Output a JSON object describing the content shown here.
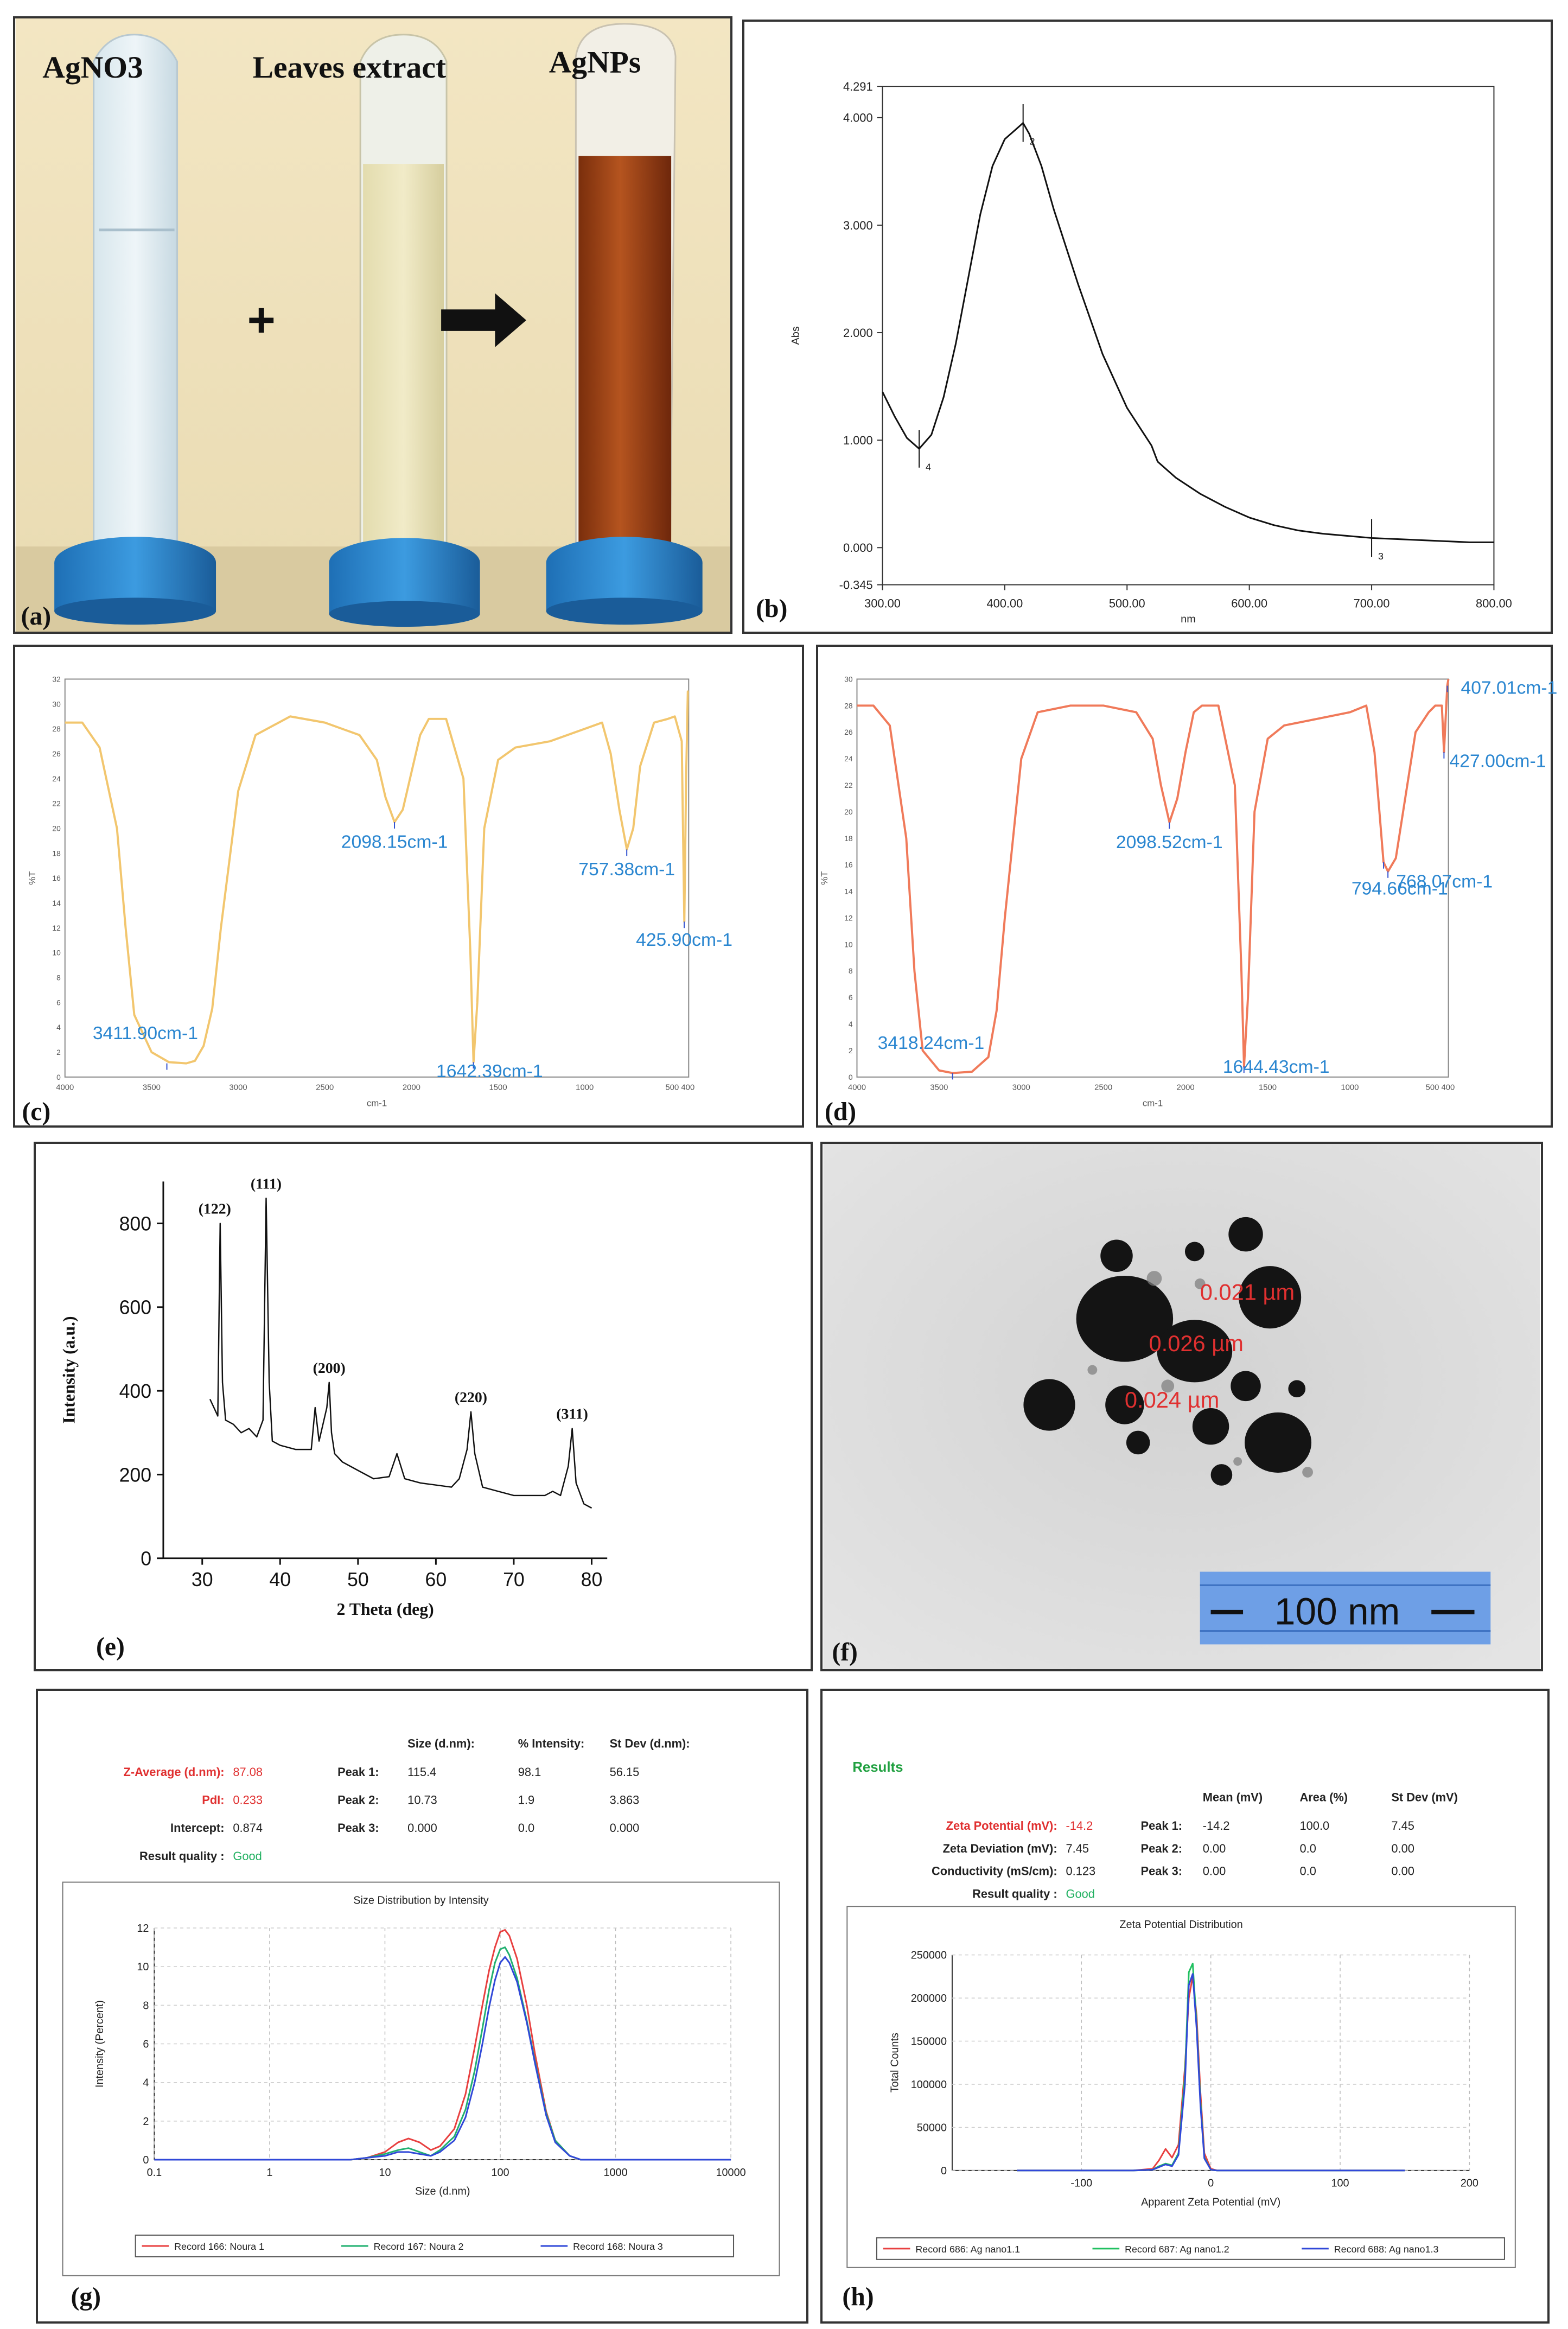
{
  "panels": [
    {
      "id": "a",
      "label": "(a)",
      "titles": {
        "left": "AgNO3",
        "middle": "Leaves extract",
        "right": "AgNPs"
      },
      "symbols": {
        "plus": "+",
        "arrow": "arrow-right"
      }
    },
    {
      "id": "b",
      "label": "(b)"
    },
    {
      "id": "c",
      "label": "(c)"
    },
    {
      "id": "d",
      "label": "(d)"
    },
    {
      "id": "e",
      "label": "(e)"
    },
    {
      "id": "f",
      "label": "(f)",
      "tem": {
        "measurements": [
          "0.021 µm",
          "0.026 µm",
          "0.024 µm"
        ],
        "scale_bar": "100 nm",
        "bar_color": "#6e9fe6",
        "text_color": "#e03030"
      }
    },
    {
      "id": "g",
      "label": "(g)"
    },
    {
      "id": "h",
      "label": "(h)"
    }
  ],
  "chart_data": [
    {
      "panel": "b",
      "type": "line",
      "title": "",
      "xlabel": "nm",
      "ylabel": "Abs",
      "xlim": [
        300,
        800
      ],
      "ylim": [
        -0.345,
        4.291
      ],
      "xticks": [
        "300.00",
        "400.00",
        "500.00",
        "600.00",
        "700.00",
        "800.00"
      ],
      "yticks": [
        {
          "v": -0.345,
          "t": "-0.345"
        },
        {
          "v": 0,
          "t": "0.000"
        },
        {
          "v": 1,
          "t": "1.000"
        },
        {
          "v": 2,
          "t": "2.000"
        },
        {
          "v": 3,
          "t": "3.000"
        },
        {
          "v": 4,
          "t": "4.000"
        },
        {
          "v": 4.291,
          "t": "4.291"
        }
      ],
      "x": [
        300,
        310,
        320,
        330,
        340,
        350,
        360,
        370,
        380,
        390,
        400,
        410,
        415,
        420,
        430,
        440,
        460,
        480,
        500,
        520,
        525,
        540,
        560,
        580,
        600,
        620,
        640,
        660,
        680,
        700,
        720,
        740,
        760,
        780,
        800
      ],
      "values": [
        1.45,
        1.22,
        1.02,
        0.92,
        1.05,
        1.4,
        1.9,
        2.5,
        3.1,
        3.55,
        3.8,
        3.9,
        3.95,
        3.85,
        3.55,
        3.15,
        2.45,
        1.8,
        1.3,
        0.95,
        0.8,
        0.65,
        0.5,
        0.38,
        0.28,
        0.21,
        0.16,
        0.13,
        0.11,
        0.09,
        0.08,
        0.07,
        0.06,
        0.05,
        0.05
      ],
      "markers": [
        {
          "x": 330,
          "text": "4"
        },
        {
          "x": 415,
          "text": "2"
        },
        {
          "x": 700,
          "text": "3"
        }
      ],
      "color": "#111111"
    },
    {
      "panel": "c",
      "type": "line",
      "title": "",
      "xlabel": "cm-1",
      "ylabel": "%T",
      "xlim": [
        4000,
        400
      ],
      "ylim": [
        0,
        32
      ],
      "xticks": [
        "4000",
        "3500",
        "3000",
        "2500",
        "2000",
        "1500",
        "1000",
        "500 400"
      ],
      "yticks": [
        "0",
        "2",
        "4",
        "6",
        "8",
        "10",
        "12",
        "14",
        "16",
        "18",
        "20",
        "22",
        "24",
        "26",
        "28",
        "30",
        "32"
      ],
      "x": [
        4000,
        3900,
        3800,
        3700,
        3650,
        3600,
        3500,
        3400,
        3300,
        3250,
        3200,
        3150,
        3100,
        3000,
        2900,
        2700,
        2500,
        2300,
        2200,
        2150,
        2098,
        2050,
        2000,
        1950,
        1900,
        1800,
        1700,
        1660,
        1642,
        1620,
        1580,
        1500,
        1400,
        1200,
        1000,
        900,
        850,
        800,
        757,
        720,
        680,
        600,
        520,
        480,
        440,
        425,
        415,
        405,
        400
      ],
      "values": [
        28.5,
        28.5,
        26.5,
        20,
        12,
        5,
        2,
        1.2,
        1.1,
        1.3,
        2.5,
        5.5,
        12,
        23,
        27.5,
        29,
        28.5,
        27.5,
        25.5,
        22.5,
        20.5,
        21.5,
        24.5,
        27.5,
        28.8,
        28.8,
        24,
        10,
        1.2,
        6,
        20,
        25.5,
        26.5,
        27,
        28,
        28.5,
        26,
        21.5,
        18.3,
        20,
        25,
        28.5,
        28.8,
        29,
        27,
        12.5,
        24,
        31,
        31
      ],
      "annotations": [
        {
          "x": 3411.9,
          "y": 1.1,
          "text": "3411.90cm-1"
        },
        {
          "x": 2098.15,
          "y": 20.5,
          "text": "2098.15cm-1"
        },
        {
          "x": 1642.39,
          "y": 1.2,
          "text": "1642.39cm-1"
        },
        {
          "x": 757.38,
          "y": 18.3,
          "text": "757.38cm-1"
        },
        {
          "x": 425.9,
          "y": 12.5,
          "text": "425.90cm-1"
        }
      ],
      "color": "#f2c66e"
    },
    {
      "panel": "d",
      "type": "line",
      "title": "",
      "xlabel": "cm-1",
      "ylabel": "%T",
      "xlim": [
        4000,
        400
      ],
      "ylim": [
        0,
        30
      ],
      "xticks": [
        "4000",
        "3500",
        "3000",
        "2500",
        "2000",
        "1500",
        "1000",
        "500 400"
      ],
      "yticks": [
        "0",
        "2",
        "4",
        "6",
        "8",
        "10",
        "12",
        "14",
        "16",
        "18",
        "20",
        "22",
        "24",
        "26",
        "28",
        "30"
      ],
      "x": [
        4000,
        3900,
        3800,
        3700,
        3650,
        3600,
        3500,
        3418,
        3300,
        3200,
        3150,
        3100,
        3000,
        2900,
        2700,
        2500,
        2300,
        2200,
        2150,
        2098,
        2050,
        2000,
        1950,
        1900,
        1800,
        1700,
        1660,
        1644,
        1620,
        1580,
        1500,
        1400,
        1200,
        1000,
        900,
        850,
        820,
        795,
        768,
        720,
        600,
        520,
        480,
        440,
        427,
        415,
        407,
        400
      ],
      "values": [
        28,
        28,
        26.5,
        18,
        8,
        2,
        0.5,
        0.3,
        0.4,
        1.5,
        5,
        12,
        24,
        27.5,
        28,
        28,
        27.5,
        25.5,
        22,
        19.2,
        21,
        24.5,
        27.5,
        28,
        28,
        22,
        8,
        0.8,
        6,
        20,
        25.5,
        26.5,
        27,
        27.5,
        28,
        24.5,
        20,
        16.2,
        15.5,
        16.5,
        26,
        27.5,
        28,
        28,
        24.5,
        27.5,
        29.5,
        30
      ],
      "annotations": [
        {
          "x": 3418.24,
          "y": 0.3,
          "text": "3418.24cm-1"
        },
        {
          "x": 2098.52,
          "y": 19.2,
          "text": "2098.52cm-1"
        },
        {
          "x": 1644.43,
          "y": 0.8,
          "text": "1644.43cm-1"
        },
        {
          "x": 794.66,
          "y": 16.2,
          "text": "794.66cm-1"
        },
        {
          "x": 768.07,
          "y": 15.5,
          "text": "768.07cm-1"
        },
        {
          "x": 427.0,
          "y": 24.5,
          "text": "427.00cm-1"
        },
        {
          "x": 407.01,
          "y": 29.5,
          "text": "407.01cm-1"
        }
      ],
      "color": "#f07a5a"
    },
    {
      "panel": "e",
      "type": "line",
      "title": "",
      "xlabel": "2 Theta (deg)",
      "ylabel": "Intensity (a.u.)",
      "xlim": [
        25,
        82
      ],
      "ylim": [
        0,
        900
      ],
      "xticks": [
        30,
        40,
        50,
        60,
        70,
        80
      ],
      "yticks": [
        0,
        200,
        400,
        600,
        800
      ],
      "x": [
        31,
        31.5,
        32,
        32.3,
        32.6,
        33,
        34,
        35,
        36,
        37,
        37.8,
        38.2,
        38.6,
        39,
        40,
        42,
        44,
        44.5,
        45,
        46,
        46.3,
        46.6,
        47,
        48,
        50,
        52,
        54,
        55,
        56,
        58,
        60,
        62,
        63,
        64,
        64.5,
        65,
        66,
        68,
        70,
        72,
        74,
        75,
        76,
        77,
        77.5,
        78,
        79,
        80
      ],
      "values": [
        380,
        360,
        340,
        800,
        420,
        330,
        320,
        300,
        310,
        290,
        330,
        860,
        420,
        280,
        270,
        260,
        260,
        360,
        280,
        360,
        420,
        300,
        250,
        230,
        210,
        190,
        195,
        250,
        190,
        180,
        175,
        170,
        190,
        260,
        350,
        250,
        170,
        160,
        150,
        150,
        150,
        160,
        150,
        220,
        310,
        180,
        130,
        120
      ],
      "peaks": [
        {
          "x": 32.3,
          "y": 800,
          "text": "(122)"
        },
        {
          "x": 38.2,
          "y": 860,
          "text": "(111)"
        },
        {
          "x": 46.3,
          "y": 420,
          "text": "(200)"
        },
        {
          "x": 64.5,
          "y": 350,
          "text": "(220)"
        },
        {
          "x": 77.5,
          "y": 310,
          "text": "(311)"
        }
      ],
      "color": "#111111"
    },
    {
      "panel": "g",
      "type": "line",
      "title": "Size Distribution by Intensity",
      "xlabel": "Size (d.nm)",
      "ylabel": "Intensity (Percent)",
      "log_x": true,
      "xlim": [
        0.1,
        10000
      ],
      "ylim": [
        0,
        12
      ],
      "xticks": [
        "0.1",
        "1",
        "10",
        "100",
        "1000",
        "10000"
      ],
      "yticks": [
        0,
        2,
        4,
        6,
        8,
        10,
        12
      ],
      "results": {
        "headers": [
          "Size (d.nm):",
          "% Intensity:",
          "St Dev (d.nm):"
        ],
        "left": [
          {
            "label": "Z-Average (d.nm):",
            "value": "87.08",
            "highlight": true
          },
          {
            "label": "PdI:",
            "value": "0.233",
            "highlight": true
          },
          {
            "label": "Intercept:",
            "value": "0.874",
            "highlight": false
          },
          {
            "label": "Result quality :",
            "value": "Good",
            "highlight": false
          }
        ],
        "peaks": [
          {
            "label": "Peak 1:",
            "size": "115.4",
            "intensity": "98.1",
            "stdev": "56.15"
          },
          {
            "label": "Peak 2:",
            "size": "10.73",
            "intensity": "1.9",
            "stdev": "3.863"
          },
          {
            "label": "Peak 3:",
            "size": "0.000",
            "intensity": "0.0",
            "stdev": "0.000"
          }
        ]
      },
      "x": [
        0.1,
        5,
        7,
        10,
        13,
        16,
        20,
        25,
        30,
        40,
        50,
        60,
        70,
        80,
        90,
        100,
        110,
        120,
        140,
        170,
        200,
        250,
        300,
        400,
        500,
        600,
        10000
      ],
      "series": [
        {
          "name": "Record 166: Noura 1",
          "color": "#e84040",
          "values": [
            0,
            0,
            0.1,
            0.4,
            0.9,
            1.1,
            0.9,
            0.5,
            0.7,
            1.6,
            3.4,
            5.8,
            8,
            9.8,
            11,
            11.8,
            11.9,
            11.6,
            10.4,
            8,
            5.5,
            2.5,
            1,
            0.2,
            0,
            0,
            0
          ]
        },
        {
          "name": "Record 167: Noura 2",
          "color": "#20b070",
          "values": [
            0,
            0,
            0.1,
            0.3,
            0.5,
            0.6,
            0.4,
            0.2,
            0.5,
            1.2,
            2.6,
            4.6,
            6.8,
            8.8,
            10.2,
            10.9,
            11,
            10.6,
            9.4,
            7.2,
            5.1,
            2.4,
            1,
            0.2,
            0,
            0,
            0
          ]
        },
        {
          "name": "Record 168: Noura 3",
          "color": "#3048d8",
          "values": [
            0,
            0,
            0.1,
            0.2,
            0.4,
            0.4,
            0.3,
            0.2,
            0.4,
            1,
            2.2,
            4,
            6,
            7.9,
            9.3,
            10.2,
            10.5,
            10.2,
            9.2,
            7.1,
            5,
            2.3,
            0.9,
            0.2,
            0,
            0,
            0
          ]
        }
      ]
    },
    {
      "panel": "h",
      "type": "line",
      "title": "Zeta Potential Distribution",
      "xlabel": "Apparent Zeta Potential (mV)",
      "ylabel": "Total Counts",
      "xlim": [
        -200,
        200
      ],
      "ylim": [
        0,
        250000
      ],
      "xticks": [
        "-100",
        "0",
        "100",
        "200"
      ],
      "yticks": [
        "0",
        "50000",
        "100000",
        "150000",
        "200000",
        "250000"
      ],
      "results": {
        "heading": "Results",
        "headers": [
          "Mean (mV)",
          "Area (%)",
          "St Dev (mV)"
        ],
        "left": [
          {
            "label": "Zeta Potential (mV):",
            "value": "-14.2",
            "highlight": true
          },
          {
            "label": "Zeta Deviation (mV):",
            "value": "7.45",
            "highlight": false
          },
          {
            "label": "Conductivity (mS/cm):",
            "value": "0.123",
            "highlight": false
          },
          {
            "label": "Result quality :",
            "value": "Good",
            "highlight": false
          }
        ],
        "peaks": [
          {
            "label": "Peak 1:",
            "mean": "-14.2",
            "area": "100.0",
            "stdev": "7.45"
          },
          {
            "label": "Peak 2:",
            "mean": "0.00",
            "area": "0.0",
            "stdev": "0.00"
          },
          {
            "label": "Peak 3:",
            "mean": "0.00",
            "area": "0.0",
            "stdev": "0.00"
          }
        ]
      },
      "x": [
        -150,
        -60,
        -45,
        -40,
        -35,
        -30,
        -25,
        -20,
        -17,
        -14,
        -11,
        -8,
        -5,
        0,
        5,
        150
      ],
      "series": [
        {
          "name": "Record 686: Ag nano1.1",
          "color": "#e84040",
          "values": [
            0,
            0,
            2000,
            12000,
            25000,
            15000,
            30000,
            120000,
            200000,
            225000,
            180000,
            90000,
            20000,
            2000,
            0,
            0
          ]
        },
        {
          "name": "Record 687: Ag nano1.2",
          "color": "#20c060",
          "values": [
            0,
            0,
            1000,
            5000,
            8000,
            6000,
            20000,
            110000,
            230000,
            240000,
            170000,
            80000,
            15000,
            1000,
            0,
            0
          ]
        },
        {
          "name": "Record 688: Ag nano1.3",
          "color": "#3048d8",
          "values": [
            0,
            0,
            1000,
            4000,
            7000,
            5000,
            18000,
            100000,
            215000,
            228000,
            165000,
            75000,
            14000,
            1000,
            0,
            0
          ]
        }
      ]
    }
  ]
}
